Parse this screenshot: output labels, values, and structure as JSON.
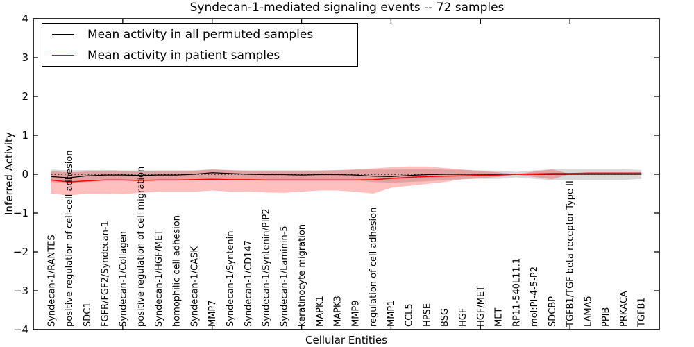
{
  "chart_data": {
    "type": "line",
    "title": "Syndecan-1-mediated signaling events -- 72 samples",
    "xlabel": "Cellular Entities",
    "ylabel": "Inferred Activity",
    "ylim": [
      -4,
      4
    ],
    "yticks": [
      -4,
      -3,
      -2,
      -1,
      0,
      1,
      2,
      3,
      4
    ],
    "xticks_major": [
      5,
      10,
      15,
      20,
      25,
      30
    ],
    "grid": false,
    "categories": [
      "Syndecan-1/RANTES",
      "positive regulation of cell-cell adhesion",
      "SDC1",
      "FGFR/FGF2/Syndecan-1",
      "Syndecan-1/Collagen",
      "positive regulation of cell migration",
      "Syndecan-1/HGF/MET",
      "homophilic cell adhesion",
      "Syndecan-1/CASK",
      "MMP7",
      "Syndecan-1/Syntenin",
      "Syndecan-1/CD147",
      "Syndecan-1/Syntenin/PIP2",
      "Syndecan-1/Laminin-5",
      "keratinocyte migration",
      "MAPK1",
      "MAPK3",
      "MMP9",
      "regulation of cell adhesion",
      "MMP1",
      "CCL5",
      "HPSE",
      "BSG",
      "HGF",
      "HGF/MET",
      "MET",
      "RP11-540L11.1",
      "mol:PI-4-5-P2",
      "SDCBP",
      "TGFB1/TGF beta receptor Type II",
      "LAMA5",
      "PPIB",
      "PRKACA",
      "TGFB1"
    ],
    "zero_reference_line": {
      "y": 0,
      "style": "dotted",
      "color": "#000000"
    },
    "series": [
      {
        "name": "Mean activity in all permuted samples",
        "color": "#000000",
        "values": [
          -0.06,
          -0.09,
          -0.04,
          -0.02,
          -0.02,
          -0.03,
          -0.02,
          -0.02,
          0,
          0.04,
          0.02,
          0,
          -0.01,
          -0.01,
          -0.02,
          -0.01,
          -0.01,
          -0.02,
          -0.05,
          -0.06,
          -0.03,
          -0.01,
          0,
          0,
          0,
          0,
          0,
          0,
          0,
          0,
          0,
          0,
          0,
          0
        ]
      },
      {
        "name": "Mean activity in patient samples",
        "color": "#ff0000",
        "values": [
          -0.15,
          -0.2,
          -0.17,
          -0.15,
          -0.15,
          -0.16,
          -0.15,
          -0.15,
          -0.14,
          -0.13,
          -0.14,
          -0.14,
          -0.15,
          -0.15,
          -0.15,
          -0.15,
          -0.15,
          -0.15,
          -0.14,
          -0.11,
          -0.08,
          -0.06,
          -0.05,
          -0.04,
          -0.03,
          -0.02,
          0,
          0.01,
          0.02,
          0.02,
          0.03,
          0.03,
          0.03,
          0.03
        ]
      }
    ],
    "bands": [
      {
        "name": "permuted-std-band",
        "color": "#787878",
        "opacity": 0.28,
        "upper": [
          0.12,
          0.1,
          0.11,
          0.11,
          0.1,
          0.1,
          0.1,
          0.1,
          0.1,
          0.13,
          0.11,
          0.1,
          0.1,
          0.1,
          0.1,
          0.1,
          0.11,
          0.12,
          0.12,
          0.12,
          0.13,
          0.13,
          0.12,
          0.11,
          0.1,
          0.09,
          0.06,
          0.1,
          0.12,
          0.13,
          0.13,
          0.13,
          0.13,
          0.11
        ],
        "lower": [
          -0.2,
          -0.25,
          -0.2,
          -0.16,
          -0.15,
          -0.15,
          -0.15,
          -0.15,
          -0.13,
          -0.12,
          -0.13,
          -0.15,
          -0.15,
          -0.15,
          -0.15,
          -0.15,
          -0.15,
          -0.16,
          -0.2,
          -0.22,
          -0.2,
          -0.18,
          -0.15,
          -0.13,
          -0.12,
          -0.12,
          -0.08,
          -0.12,
          -0.15,
          -0.15,
          -0.15,
          -0.15,
          -0.15,
          -0.12
        ]
      },
      {
        "name": "patient-std-band",
        "color": "#ff0000",
        "opacity": 0.25,
        "upper": [
          0.08,
          0.05,
          0.07,
          0.08,
          0.08,
          0.07,
          0.08,
          0.08,
          0.09,
          0.12,
          0.1,
          0.08,
          0.08,
          0.08,
          0.08,
          0.09,
          0.1,
          0.12,
          0.15,
          0.18,
          0.2,
          0.2,
          0.16,
          0.12,
          0.08,
          0.05,
          0,
          0.07,
          0.13,
          0.01,
          0.05,
          0.05,
          0.05,
          0.05
        ],
        "lower": [
          -0.5,
          -0.55,
          -0.5,
          -0.5,
          -0.52,
          -0.48,
          -0.45,
          -0.45,
          -0.45,
          -0.42,
          -0.45,
          -0.45,
          -0.47,
          -0.48,
          -0.45,
          -0.42,
          -0.42,
          -0.45,
          -0.5,
          -0.35,
          -0.3,
          -0.25,
          -0.2,
          -0.13,
          -0.1,
          -0.07,
          -0.01,
          -0.07,
          -0.13,
          0,
          0.01,
          0.01,
          0.01,
          0.01
        ]
      }
    ],
    "legend": {
      "position": "upper-left",
      "items": [
        {
          "label": "Mean activity in all permuted samples",
          "color": "#000000"
        },
        {
          "label": "Mean activity in patient samples",
          "color": "#ff0000"
        }
      ]
    }
  }
}
